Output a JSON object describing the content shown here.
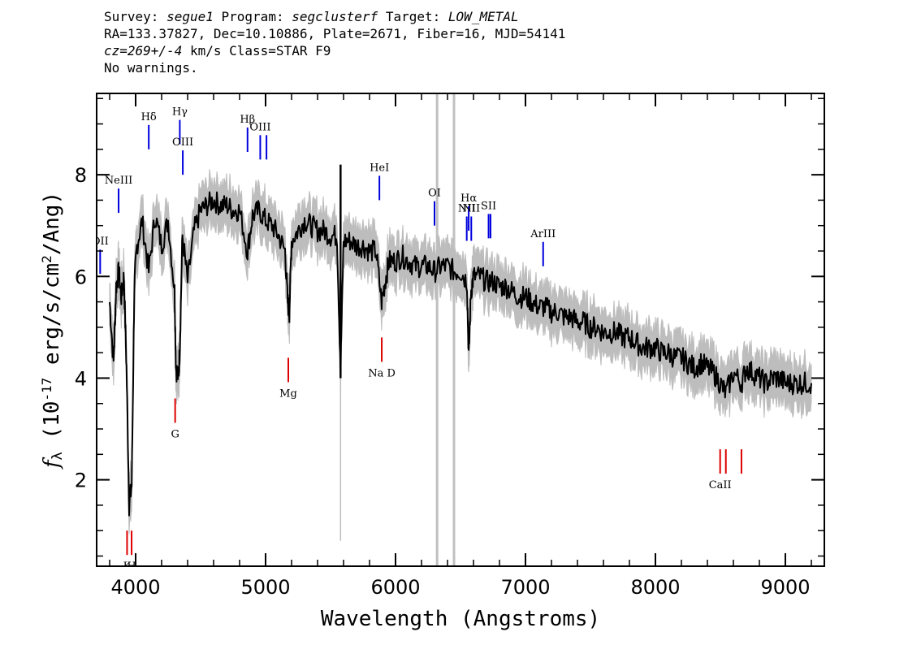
{
  "header": {
    "survey_label": "Survey:",
    "survey": "segue1",
    "program_label": "Program:",
    "program": "segclusterf",
    "target_label": "Target:",
    "target": "LOW_METAL",
    "line2": "RA=133.37827, Dec=10.10886, Plate=2671, Fiber=16, MJD=54141",
    "cz": "cz=269+/-4",
    "line3_rest": "km/s Class=STAR F9",
    "line4": "No warnings."
  },
  "chart_data": {
    "type": "line",
    "title": "",
    "xlabel": "Wavelength (Angstroms)",
    "ylabel_parts": [
      "f",
      "λ",
      " (10",
      "-17",
      " erg/s/cm",
      "2",
      "/Ang)"
    ],
    "xlim": [
      3700,
      9300
    ],
    "ylim": [
      0.3,
      9.6
    ],
    "xticks": [
      4000,
      5000,
      6000,
      7000,
      8000,
      9000
    ],
    "yticks": [
      2,
      4,
      6,
      8
    ],
    "colors": {
      "flux": "#000000",
      "error": "#bdbdbd",
      "emission": "#0000dd",
      "absorption": "#dd0000",
      "mask": "#c0c0c0"
    },
    "masked_bands": [
      6320,
      6450
    ],
    "flux": {
      "x": [
        3800,
        3830,
        3850,
        3870,
        3890,
        3910,
        3930,
        3950,
        3970,
        3990,
        4010,
        4050,
        4101,
        4150,
        4200,
        4250,
        4300,
        4310,
        4330,
        4340,
        4360,
        4400,
        4450,
        4500,
        4550,
        4600,
        4650,
        4700,
        4750,
        4800,
        4861,
        4900,
        4950,
        5000,
        5050,
        5100,
        5150,
        5170,
        5183,
        5200,
        5250,
        5300,
        5350,
        5400,
        5450,
        5500,
        5550,
        5577,
        5600,
        5650,
        5700,
        5750,
        5800,
        5850,
        5893,
        5920,
        5950,
        6000,
        6050,
        6100,
        6150,
        6200,
        6250,
        6300,
        6350,
        6400,
        6450,
        6500,
        6550,
        6563,
        6580,
        6600,
        6650,
        6700,
        6750,
        6800,
        6850,
        6900,
        6950,
        7000,
        7050,
        7100,
        7150,
        7200,
        7250,
        7300,
        7350,
        7400,
        7450,
        7500,
        7550,
        7600,
        7650,
        7700,
        7750,
        7800,
        7850,
        7900,
        7950,
        8000,
        8050,
        8100,
        8150,
        8200,
        8250,
        8300,
        8350,
        8400,
        8450,
        8498,
        8542,
        8600,
        8662,
        8700,
        8750,
        8800,
        8850,
        8900,
        8950,
        9000,
        9050,
        9100,
        9150,
        9200
      ],
      "y": [
        5.5,
        4.3,
        5.8,
        6.1,
        5.6,
        6.0,
        4.2,
        1.5,
        1.9,
        5.8,
        6.6,
        7.1,
        6.1,
        7.2,
        6.6,
        7.1,
        5.7,
        4.2,
        4.0,
        4.6,
        6.8,
        5.9,
        6.9,
        7.3,
        7.4,
        7.5,
        7.4,
        7.4,
        7.3,
        7.3,
        6.5,
        7.2,
        7.3,
        7.1,
        7.0,
        6.8,
        6.5,
        5.5,
        5.3,
        6.7,
        6.9,
        7.1,
        7.0,
        6.9,
        6.9,
        6.8,
        6.8,
        4.2,
        6.7,
        6.7,
        6.6,
        6.6,
        6.5,
        6.5,
        5.5,
        5.9,
        6.3,
        6.3,
        6.4,
        6.3,
        6.2,
        6.2,
        6.2,
        6.1,
        6.2,
        6.2,
        6.1,
        6.1,
        5.9,
        4.4,
        5.7,
        6.0,
        6.0,
        5.9,
        5.9,
        5.8,
        5.8,
        5.7,
        5.6,
        5.6,
        5.5,
        5.4,
        5.4,
        5.3,
        5.3,
        5.2,
        5.2,
        5.1,
        5.1,
        5.0,
        5.0,
        4.9,
        4.9,
        4.9,
        4.8,
        4.8,
        4.7,
        4.6,
        4.6,
        4.6,
        4.5,
        4.5,
        4.4,
        4.4,
        4.3,
        4.2,
        4.3,
        4.2,
        4.1,
        3.9,
        3.7,
        4.1,
        3.9,
        4.2,
        4.1,
        4.0,
        3.9,
        4.0,
        4.0,
        3.9,
        3.9,
        3.9,
        3.9,
        3.9
      ]
    },
    "emission_lines": [
      {
        "label": "OII",
        "x": 3727,
        "y": 6.05
      },
      {
        "label": "NeIII",
        "x": 3869,
        "y": 7.25
      },
      {
        "label": "Hδ",
        "x": 4101,
        "y": 8.5
      },
      {
        "label": "Hγ",
        "x": 4340,
        "y": 8.6
      },
      {
        "label": "OIII",
        "x": 4363,
        "y": 8.0
      },
      {
        "label": "Hβ",
        "x": 4861,
        "y": 8.45
      },
      {
        "label": "OIII",
        "x": 4959,
        "y": 8.3
      },
      {
        "label": "",
        "x": 5007,
        "y": 8.3
      },
      {
        "label": "HeI",
        "x": 5876,
        "y": 7.5
      },
      {
        "label": "OI",
        "x": 6300,
        "y": 7.0
      },
      {
        "label": "NII",
        "x": 6548,
        "y": 6.7
      },
      {
        "label": "Hα",
        "x": 6563,
        "y": 6.9
      },
      {
        "label": "NII",
        "x": 6583,
        "y": 6.7
      },
      {
        "label": "SII",
        "x": 6716,
        "y": 6.75
      },
      {
        "label": "",
        "x": 6731,
        "y": 6.75
      },
      {
        "label": "ArIII",
        "x": 7136,
        "y": 6.2
      }
    ],
    "absorption_lines": [
      {
        "label": "K",
        "x": 3934,
        "y": 1.0
      },
      {
        "label": "H",
        "x": 3969,
        "y": 1.0
      },
      {
        "label": "G",
        "x": 4304,
        "y": 3.6
      },
      {
        "label": "Mg",
        "x": 5175,
        "y": 4.4
      },
      {
        "label": "Na D",
        "x": 5894,
        "y": 4.8
      },
      {
        "label": "CaII",
        "x": 8498,
        "y": 2.6
      },
      {
        "label": "",
        "x": 8542,
        "y": 2.6
      },
      {
        "label": "",
        "x": 8662,
        "y": 2.6
      }
    ]
  }
}
